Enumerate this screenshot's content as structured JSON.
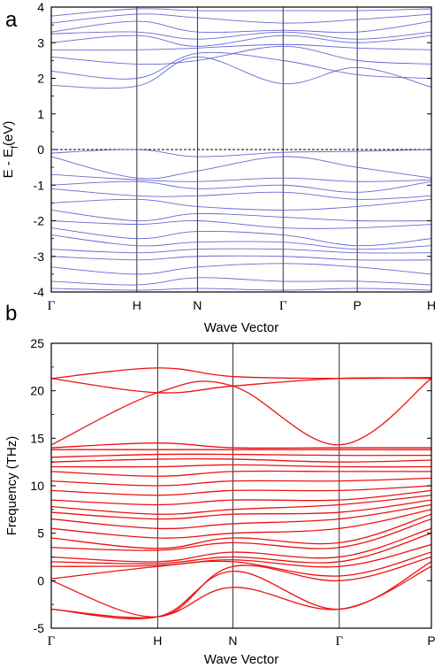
{
  "chart_data": [
    {
      "panel_label": "a",
      "type": "line",
      "xlabel": "Wave Vector",
      "ylabel_parts": {
        "main": "E - E",
        "sub": "f",
        "end": "(eV)"
      },
      "ylim": [
        -4,
        4
      ],
      "yticks": [
        -4,
        -3,
        -2,
        -1,
        0,
        1,
        2,
        3,
        4
      ],
      "kpoints": [
        "Γ",
        "H",
        "N",
        "Γ",
        "P",
        "H"
      ],
      "kpos": [
        0,
        1,
        1.7071,
        2.7071,
        3.5731,
        4.4391
      ],
      "fermi_level": 0,
      "line_color": "#4d4dcf",
      "series": [
        {
          "values": [
            1.8,
            1.78,
            2.6,
            1.85,
            2.3,
            1.75
          ]
        },
        {
          "values": [
            2.2,
            2.0,
            2.7,
            2.5,
            2.1,
            2.0
          ]
        },
        {
          "values": [
            2.6,
            2.4,
            2.5,
            2.9,
            2.5,
            2.4
          ]
        },
        {
          "values": [
            2.8,
            2.8,
            2.85,
            2.95,
            2.85,
            2.8
          ]
        },
        {
          "values": [
            3.0,
            3.2,
            2.9,
            3.2,
            3.0,
            3.2
          ]
        },
        {
          "values": [
            3.25,
            3.3,
            3.1,
            3.3,
            3.1,
            3.3
          ]
        },
        {
          "values": [
            3.3,
            3.6,
            3.3,
            3.35,
            3.3,
            3.6
          ]
        },
        {
          "values": [
            3.55,
            3.8,
            3.7,
            3.55,
            3.65,
            3.8
          ]
        },
        {
          "values": [
            3.75,
            3.95,
            3.9,
            3.9,
            3.9,
            3.95
          ]
        },
        {
          "values": [
            -0.1,
            0.0,
            -0.2,
            -0.08,
            -0.05,
            0.0
          ]
        },
        {
          "values": [
            -0.2,
            -0.8,
            -0.6,
            -0.2,
            -0.5,
            -0.8
          ]
        },
        {
          "values": [
            -0.7,
            -0.85,
            -0.9,
            -0.8,
            -0.9,
            -0.85
          ]
        },
        {
          "values": [
            -1.0,
            -0.9,
            -1.1,
            -1.0,
            -1.2,
            -0.9
          ]
        },
        {
          "values": [
            -1.1,
            -1.3,
            -1.3,
            -1.2,
            -1.4,
            -1.3
          ]
        },
        {
          "values": [
            -1.5,
            -1.4,
            -1.6,
            -1.7,
            -1.6,
            -1.4
          ]
        },
        {
          "values": [
            -1.7,
            -2.0,
            -1.8,
            -1.9,
            -2.0,
            -2.0
          ]
        },
        {
          "values": [
            -2.0,
            -2.1,
            -2.0,
            -2.2,
            -2.2,
            -2.1
          ]
        },
        {
          "values": [
            -2.2,
            -2.5,
            -2.3,
            -2.4,
            -2.7,
            -2.5
          ]
        },
        {
          "values": [
            -2.4,
            -2.7,
            -2.6,
            -2.6,
            -2.8,
            -2.7
          ]
        },
        {
          "values": [
            -2.8,
            -2.9,
            -2.8,
            -2.8,
            -2.9,
            -2.9
          ]
        },
        {
          "values": [
            -3.0,
            -3.1,
            -3.0,
            -3.0,
            -3.1,
            -3.1
          ]
        },
        {
          "values": [
            -3.3,
            -3.5,
            -3.3,
            -3.2,
            -3.3,
            -3.5
          ]
        },
        {
          "values": [
            -3.7,
            -3.8,
            -3.6,
            -3.7,
            -3.7,
            -3.8
          ]
        },
        {
          "values": [
            -3.9,
            -3.95,
            -3.9,
            -3.95,
            -3.9,
            -3.95
          ]
        }
      ]
    },
    {
      "panel_label": "b",
      "type": "line",
      "xlabel": "Wave Vector",
      "ylabel": "Frequency (THz)",
      "ylim": [
        -5,
        25
      ],
      "yticks": [
        -5,
        0,
        5,
        10,
        15,
        20,
        25
      ],
      "kpoints": [
        "Γ",
        "H",
        "N",
        "Γ",
        "P"
      ],
      "kpos": [
        0,
        1,
        1.7071,
        2.7071,
        3.5731
      ],
      "line_color": "#ee1111",
      "series": [
        {
          "values": [
            -3.0,
            -3.8,
            -0.7,
            -3.0,
            1.5
          ]
        },
        {
          "values": [
            -3.0,
            -3.8,
            1.0,
            -3.0,
            2.0
          ]
        },
        {
          "values": [
            0.0,
            -3.8,
            1.5,
            0.0,
            2.5
          ]
        },
        {
          "values": [
            0.2,
            1.5,
            2.0,
            0.5,
            3.0
          ]
        },
        {
          "values": [
            1.5,
            1.6,
            2.2,
            1.5,
            3.8
          ]
        },
        {
          "values": [
            2.0,
            1.8,
            2.5,
            2.0,
            5.0
          ]
        },
        {
          "values": [
            2.5,
            2.0,
            3.0,
            2.5,
            5.5
          ]
        },
        {
          "values": [
            3.5,
            3.2,
            4.0,
            3.5,
            6.5
          ]
        },
        {
          "values": [
            4.5,
            3.4,
            4.5,
            4.0,
            7.0
          ]
        },
        {
          "values": [
            5.5,
            4.5,
            5.0,
            5.5,
            7.5
          ]
        },
        {
          "values": [
            6.5,
            5.5,
            6.0,
            6.5,
            8.0
          ]
        },
        {
          "values": [
            7.2,
            6.5,
            7.0,
            7.2,
            8.5
          ]
        },
        {
          "values": [
            7.8,
            7.0,
            7.5,
            8.0,
            9.0
          ]
        },
        {
          "values": [
            8.5,
            8.0,
            8.5,
            8.5,
            9.5
          ]
        },
        {
          "values": [
            9.5,
            9.0,
            9.5,
            9.5,
            10.0
          ]
        },
        {
          "values": [
            10.5,
            10.0,
            10.5,
            10.5,
            10.8
          ]
        },
        {
          "values": [
            11.5,
            11.0,
            11.5,
            11.5,
            11.5
          ]
        },
        {
          "values": [
            12.0,
            12.0,
            12.2,
            12.0,
            12.0
          ]
        },
        {
          "values": [
            12.5,
            12.8,
            12.8,
            12.5,
            12.7
          ]
        },
        {
          "values": [
            13.0,
            13.3,
            13.3,
            13.2,
            13.2
          ]
        },
        {
          "values": [
            13.8,
            13.8,
            13.8,
            13.8,
            13.8
          ]
        },
        {
          "values": [
            14.0,
            14.5,
            14.0,
            14.0,
            14.0
          ]
        },
        {
          "values": [
            14.3,
            19.8,
            20.5,
            14.3,
            21.3
          ]
        },
        {
          "values": [
            21.3,
            19.8,
            20.5,
            21.3,
            21.3
          ]
        },
        {
          "values": [
            21.3,
            22.4,
            21.5,
            21.3,
            21.4
          ]
        }
      ]
    }
  ]
}
